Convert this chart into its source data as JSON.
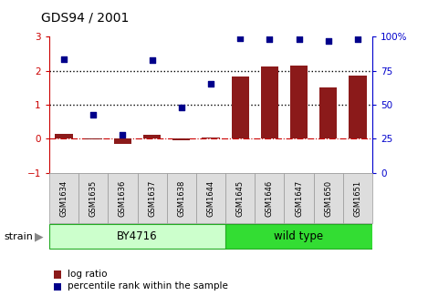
{
  "title": "GDS94 / 2001",
  "categories": [
    "GSM1634",
    "GSM1635",
    "GSM1636",
    "GSM1637",
    "GSM1638",
    "GSM1644",
    "GSM1645",
    "GSM1646",
    "GSM1647",
    "GSM1650",
    "GSM1651"
  ],
  "log_ratio": [
    0.15,
    -0.02,
    -0.15,
    0.12,
    -0.05,
    0.05,
    1.82,
    2.12,
    2.15,
    1.52,
    1.85
  ],
  "percentile_rank": [
    2.35,
    0.72,
    0.12,
    2.32,
    0.93,
    1.62,
    2.95,
    2.93,
    2.93,
    2.88,
    2.93
  ],
  "bar_color": "#8B1A1A",
  "dot_color": "#00008B",
  "zero_line_color": "#CC0000",
  "dotted_line_color": "#000000",
  "group1_label": "BY4716",
  "group2_label": "wild type",
  "group1_color": "#CCFFCC",
  "group2_color": "#33DD33",
  "strain_label": "strain",
  "legend_log": "log ratio",
  "legend_pct": "percentile rank within the sample",
  "ylim": [
    -1,
    3
  ],
  "y2lim": [
    0,
    100
  ],
  "yticks": [
    -1,
    0,
    1,
    2,
    3
  ],
  "y2ticks": [
    0,
    25,
    50,
    75,
    100
  ],
  "right_axis_color": "#0000CC",
  "left_axis_color": "#CC0000",
  "tick_label_bg": "#DDDDDD",
  "tick_label_border": "#999999"
}
